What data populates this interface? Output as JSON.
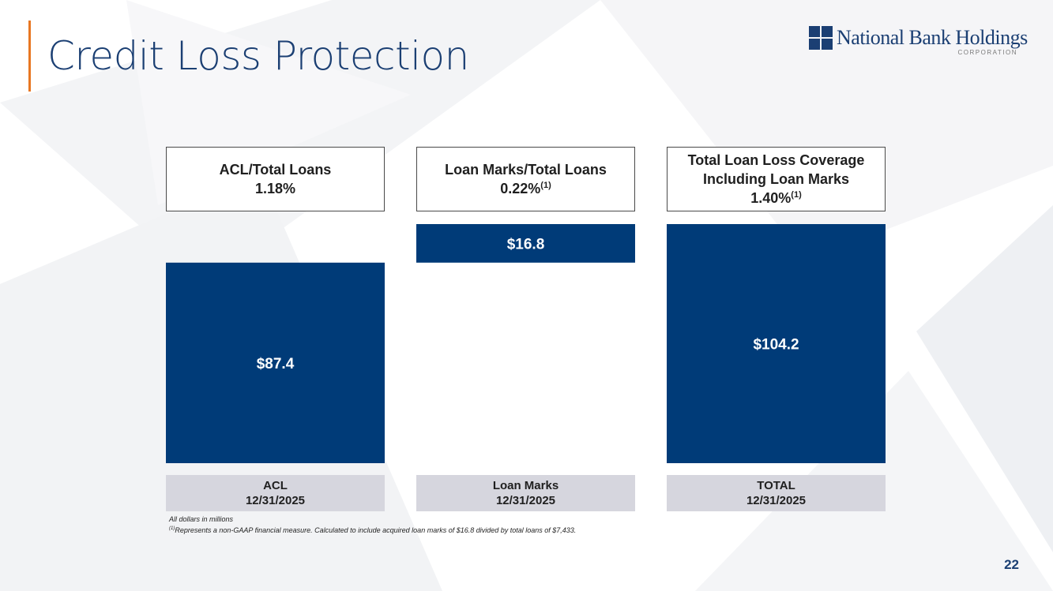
{
  "slide": {
    "title": "Credit Loss Protection",
    "page_number": "22"
  },
  "logo": {
    "name": "National Bank Holdings",
    "subtitle": "CORPORATION",
    "icon": "four-square-grid-icon"
  },
  "metrics": [
    {
      "title": "ACL/Total Loans",
      "value": "1.18%",
      "note": ""
    },
    {
      "title": "Loan Marks/Total Loans",
      "value": "0.22%",
      "note": "(1)"
    },
    {
      "title": "Total Loan Loss Coverage Including Loan Marks",
      "value": "1.40%",
      "note": "(1)"
    }
  ],
  "categories": [
    {
      "name": "ACL",
      "date": "12/31/2025"
    },
    {
      "name": "Loan Marks",
      "date": "12/31/2025"
    },
    {
      "name": "TOTAL",
      "date": "12/31/2025"
    }
  ],
  "chart_data": {
    "type": "bar",
    "subtype": "waterfall",
    "categories": [
      "ACL 12/31/2025",
      "Loan Marks 12/31/2025",
      "TOTAL 12/31/2025"
    ],
    "values": [
      87.4,
      16.8,
      104.2
    ],
    "bases": [
      0,
      87.4,
      0
    ],
    "labels": [
      "$87.4",
      "$16.8",
      "$104.2"
    ],
    "unit": "millions of dollars",
    "bar_color": "#003b78",
    "label_color": "#ffffff"
  },
  "footnotes": {
    "units": "All dollars in millions",
    "marker": "(1)",
    "note_1": "Represents a non-GAAP financial measure.  Calculated to include acquired loan marks of $16.8 divided by total loans of $7,433."
  },
  "colors": {
    "title": "#1b3f73",
    "accent": "#e87722",
    "category_bg": "#d6d6de"
  }
}
